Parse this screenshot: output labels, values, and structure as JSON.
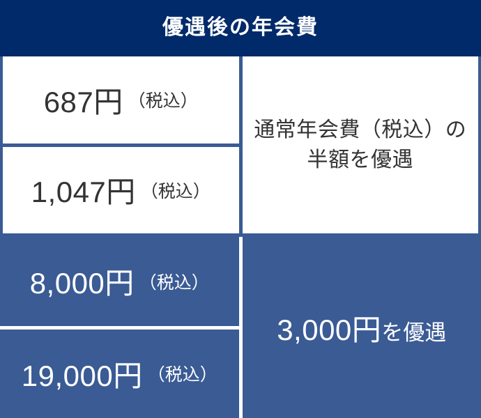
{
  "header": {
    "title": "優遇後の年会費"
  },
  "colors": {
    "navy": "#002a69",
    "blue": "#3a5b94",
    "ink": "#333333",
    "white": "#ffffff"
  },
  "table": {
    "left_rows": [
      {
        "amount": "687円",
        "note": "（税込）",
        "style": "light"
      },
      {
        "amount": "1,047円",
        "note": "（税込）",
        "style": "light"
      },
      {
        "amount": "8,000円",
        "note": "（税込）",
        "style": "dark"
      },
      {
        "amount": "19,000円",
        "note": "（税込）",
        "style": "dark"
      }
    ],
    "right_cells": [
      {
        "line1": "通常年会費（税込）の",
        "line2": "半額を優遇",
        "style": "light"
      },
      {
        "amount": "3,000円",
        "suffix": "を優遇",
        "style": "dark"
      }
    ]
  },
  "chart_data": {
    "type": "table",
    "title": "優遇後の年会費",
    "rows": [
      [
        "687円（税込）",
        "通常年会費（税込）の半額を優遇"
      ],
      [
        "1,047円（税込）",
        "通常年会費（税込）の半額を優遇"
      ],
      [
        "8,000円（税込）",
        "3,000円を優遇"
      ],
      [
        "19,000円（税込）",
        "3,000円を優遇"
      ]
    ],
    "layout": {
      "light_row_background": "#ffffff",
      "dark_row_background": "#3a5b94",
      "header_background": "#002a69",
      "right_column_rowspans": [
        2,
        2
      ]
    }
  }
}
